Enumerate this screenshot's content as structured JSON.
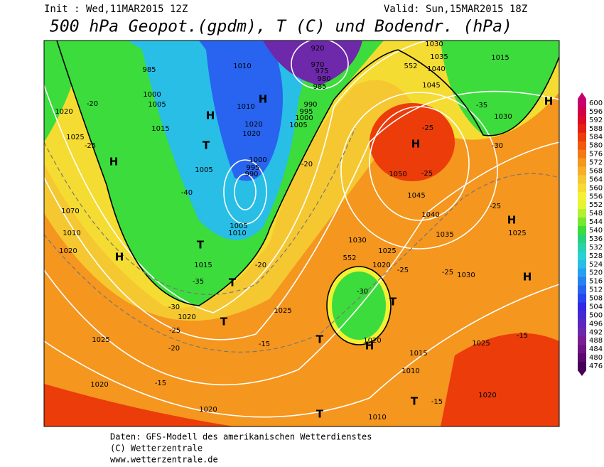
{
  "header": {
    "init": "Init : Wed,11MAR2015 12Z",
    "valid": "Valid: Sun,15MAR2015 18Z",
    "title": "500 hPa Geopot.(gpdm), T (C) und Bodendr. (hPa)"
  },
  "colorbar": {
    "levels": [
      600,
      596,
      592,
      588,
      584,
      580,
      576,
      572,
      568,
      564,
      560,
      556,
      552,
      548,
      544,
      540,
      536,
      532,
      528,
      524,
      520,
      516,
      512,
      508,
      504,
      500,
      496,
      492,
      488,
      484,
      480,
      476
    ],
    "colors": [
      "#c8006e",
      "#d2004b",
      "#dc0a28",
      "#e61e14",
      "#eb3c0a",
      "#f05a0a",
      "#f57814",
      "#f5961e",
      "#f5af28",
      "#f5c832",
      "#f5dc32",
      "#f5f032",
      "#e6f532",
      "#b4f032",
      "#78e632",
      "#3cdc3c",
      "#28d278",
      "#28d2aa",
      "#28d2d2",
      "#28bee6",
      "#28a0f0",
      "#2882f0",
      "#2864f0",
      "#2846f0",
      "#3228e6",
      "#4628d2",
      "#5a28be",
      "#6e28aa",
      "#7a1e96",
      "#6e1482",
      "#5a0a6e",
      "#46005a"
    ]
  },
  "map_labels": [
    "H",
    "H",
    "H",
    "H",
    "H",
    "H",
    "H",
    "H",
    "H",
    "T",
    "T",
    "T",
    "T",
    "T",
    "T",
    "T",
    "T",
    "1020",
    "1025",
    "1015",
    "1005",
    "1000",
    "985",
    "1010",
    "1005",
    "1010",
    "1015",
    "1020",
    "1025",
    "1020",
    "1020",
    "1025",
    "1030",
    "1020",
    "1025",
    "1035",
    "1040",
    "1045",
    "1050",
    "1045",
    "1040",
    "1035",
    "1030",
    "1015",
    "1030",
    "1025",
    "1030",
    "1025",
    "1020",
    "1015",
    "1010",
    "1010",
    "1020",
    "1070",
    "1010",
    "1020",
    "-20",
    "-25",
    "-40",
    "-35",
    "-30",
    "-25",
    "-20",
    "-15",
    "-15",
    "-20",
    "-20",
    "-25",
    "-25",
    "-30",
    "-25",
    "-25",
    "-25",
    "-30",
    "-15",
    "-15",
    "-35",
    "552",
    "552",
    "970",
    "975",
    "980",
    "985",
    "990",
    "995",
    "1000",
    "1005",
    "1010",
    "1020",
    "1020",
    "1005",
    "1000",
    "995",
    "990",
    "920"
  ],
  "footer": [
    "Daten: GFS-Modell des amerikanischen Wetterdienstes",
    "(C) Wetterzentrale",
    "www.wetterzentrale.de"
  ]
}
